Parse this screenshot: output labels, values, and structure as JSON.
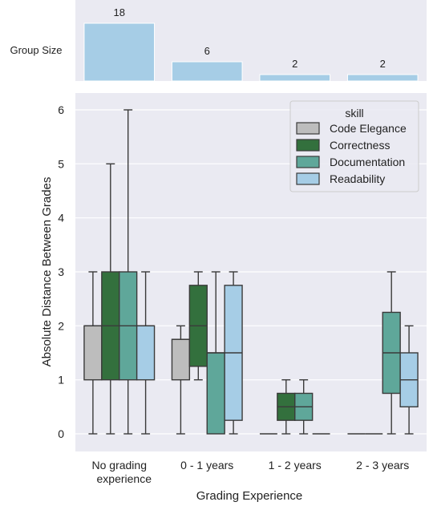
{
  "chart_data": [
    {
      "type": "bar",
      "ylabel": "Group Size",
      "categories": [
        "No grading experience",
        "0 - 1 years",
        "1 - 2 years",
        "2 - 3 years"
      ],
      "values": [
        18,
        6,
        2,
        2
      ],
      "data_labels": [
        "18",
        "6",
        "2",
        "2"
      ],
      "ylim": [
        0,
        18
      ],
      "grid": false,
      "colors": {
        "bar": "#a6cde6",
        "background": "#eaeaf2"
      }
    },
    {
      "type": "box",
      "xlabel": "Grading Experience",
      "ylabel": "Absolute Distance Between Grades",
      "categories": [
        "No grading",
        "experience",
        "0 - 1 years",
        "1 - 2 years",
        "2 - 3 years"
      ],
      "category_lines": [
        [
          "No grading",
          "experience"
        ],
        [
          "0 - 1 years"
        ],
        [
          "1 - 2 years"
        ],
        [
          "2 - 3 years"
        ]
      ],
      "ylim": [
        -0.3,
        6.3
      ],
      "yticks": [
        "0",
        "1",
        "2",
        "3",
        "4",
        "5",
        "6"
      ],
      "grid": true,
      "legend": {
        "title": "skill",
        "placement": "top-right"
      },
      "series": [
        {
          "name": "Code Elegance",
          "color": "#bdbdbd",
          "boxes": [
            {
              "min": 0,
              "q1": 1,
              "median": 2,
              "q3": 2,
              "max": 3
            },
            {
              "min": 0,
              "q1": 1,
              "median": 1.75,
              "q3": 1.75,
              "max": 2
            },
            {
              "min": 0,
              "q1": 0,
              "median": 0,
              "q3": 0,
              "max": 0
            },
            {
              "min": 0,
              "q1": 0,
              "median": 0,
              "q3": 0,
              "max": 0
            }
          ]
        },
        {
          "name": "Correctness",
          "color": "#33703d",
          "boxes": [
            {
              "min": 0,
              "q1": 1,
              "median": 2,
              "q3": 3,
              "max": 5
            },
            {
              "min": 1,
              "q1": 1.25,
              "median": 2,
              "q3": 2.75,
              "max": 3
            },
            {
              "min": 0,
              "q1": 0.25,
              "median": 0.5,
              "q3": 0.75,
              "max": 1
            },
            {
              "min": 0,
              "q1": 0,
              "median": 0,
              "q3": 0,
              "max": 0
            }
          ]
        },
        {
          "name": "Documentation",
          "color": "#5fa79a",
          "boxes": [
            {
              "min": 0,
              "q1": 1,
              "median": 2,
              "q3": 3,
              "max": 6
            },
            {
              "min": 0,
              "q1": 0,
              "median": 1.5,
              "q3": 1.5,
              "max": 3
            },
            {
              "min": 0,
              "q1": 0.25,
              "median": 0.5,
              "q3": 0.75,
              "max": 1
            },
            {
              "min": 0,
              "q1": 0.75,
              "median": 1.5,
              "q3": 2.25,
              "max": 3
            }
          ]
        },
        {
          "name": "Readability",
          "color": "#a6cde6",
          "boxes": [
            {
              "min": 0,
              "q1": 1,
              "median": 2,
              "q3": 2,
              "max": 3
            },
            {
              "min": 0,
              "q1": 0.25,
              "median": 1.5,
              "q3": 2.75,
              "max": 3
            },
            {
              "min": 0,
              "q1": 0,
              "median": 0,
              "q3": 0,
              "max": 0
            },
            {
              "min": 0,
              "q1": 0.5,
              "median": 1,
              "q3": 1.5,
              "max": 2
            }
          ]
        }
      ],
      "colors": {
        "background": "#eaeaf2",
        "grid": "#ffffff",
        "line": "#3a3a3a"
      }
    }
  ]
}
